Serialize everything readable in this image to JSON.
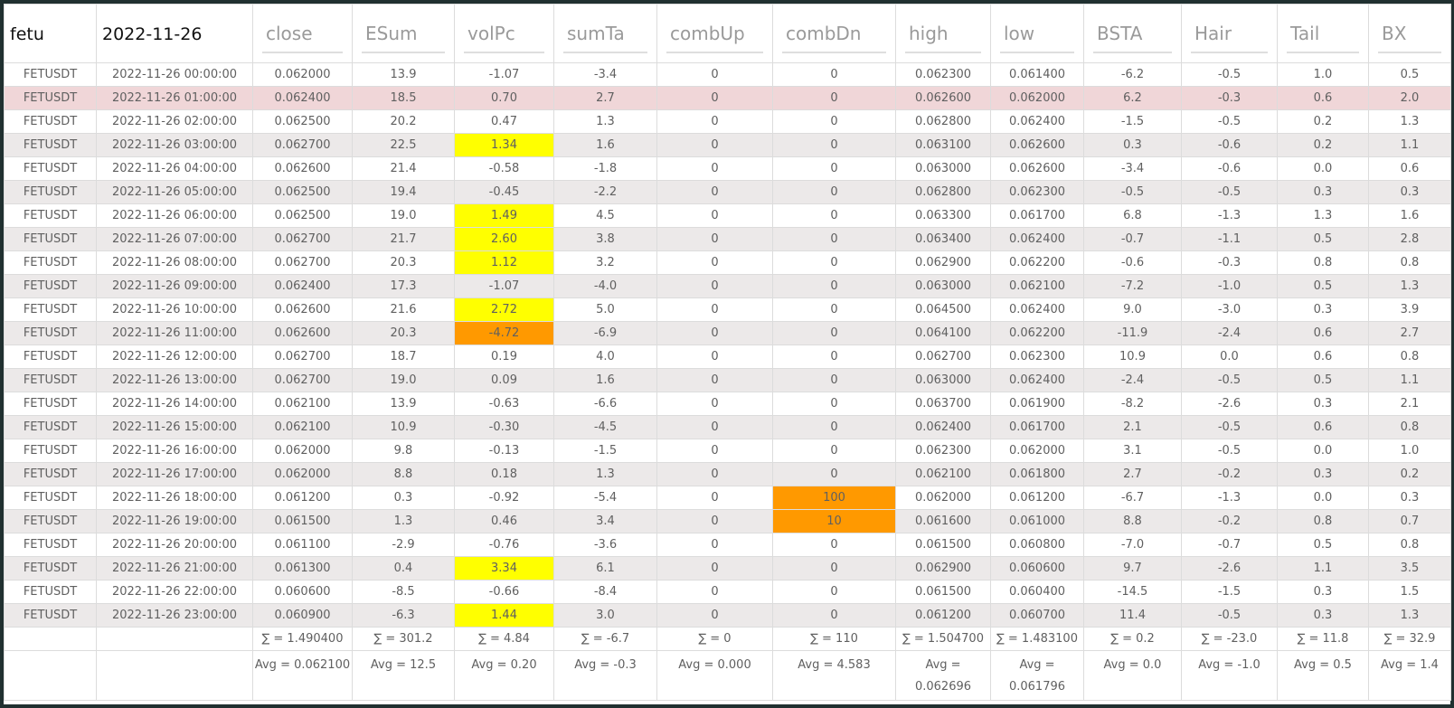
{
  "table": {
    "header": [
      "fetu",
      "2022-11-26",
      "close",
      "ESum",
      "volPc",
      "sumTa",
      "combUp",
      "combDn",
      "high",
      "low",
      "BSTA",
      "Hair",
      "Tail",
      "BX"
    ],
    "rows": [
      [
        "FETUSDT",
        "2022-11-26 00:00:00",
        "0.062000",
        "13.9",
        "-1.07",
        "-3.4",
        "0",
        "0",
        "0.062300",
        "0.061400",
        "-6.2",
        "-0.5",
        "1.0",
        "0.5"
      ],
      [
        "FETUSDT",
        "2022-11-26 01:00:00",
        "0.062400",
        "18.5",
        "0.70",
        "2.7",
        "0",
        "0",
        "0.062600",
        "0.062000",
        "6.2",
        "-0.3",
        "0.6",
        "2.0"
      ],
      [
        "FETUSDT",
        "2022-11-26 02:00:00",
        "0.062500",
        "20.2",
        "0.47",
        "1.3",
        "0",
        "0",
        "0.062800",
        "0.062400",
        "-1.5",
        "-0.5",
        "0.2",
        "1.3"
      ],
      [
        "FETUSDT",
        "2022-11-26 03:00:00",
        "0.062700",
        "22.5",
        "1.34",
        "1.6",
        "0",
        "0",
        "0.063100",
        "0.062600",
        "0.3",
        "-0.6",
        "0.2",
        "1.1"
      ],
      [
        "FETUSDT",
        "2022-11-26 04:00:00",
        "0.062600",
        "21.4",
        "-0.58",
        "-1.8",
        "0",
        "0",
        "0.063000",
        "0.062600",
        "-3.4",
        "-0.6",
        "0.0",
        "0.6"
      ],
      [
        "FETUSDT",
        "2022-11-26 05:00:00",
        "0.062500",
        "19.4",
        "-0.45",
        "-2.2",
        "0",
        "0",
        "0.062800",
        "0.062300",
        "-0.5",
        "-0.5",
        "0.3",
        "0.3"
      ],
      [
        "FETUSDT",
        "2022-11-26 06:00:00",
        "0.062500",
        "19.0",
        "1.49",
        "4.5",
        "0",
        "0",
        "0.063300",
        "0.061700",
        "6.8",
        "-1.3",
        "1.3",
        "1.6"
      ],
      [
        "FETUSDT",
        "2022-11-26 07:00:00",
        "0.062700",
        "21.7",
        "2.60",
        "3.8",
        "0",
        "0",
        "0.063400",
        "0.062400",
        "-0.7",
        "-1.1",
        "0.5",
        "2.8"
      ],
      [
        "FETUSDT",
        "2022-11-26 08:00:00",
        "0.062700",
        "20.3",
        "1.12",
        "3.2",
        "0",
        "0",
        "0.062900",
        "0.062200",
        "-0.6",
        "-0.3",
        "0.8",
        "0.8"
      ],
      [
        "FETUSDT",
        "2022-11-26 09:00:00",
        "0.062400",
        "17.3",
        "-1.07",
        "-4.0",
        "0",
        "0",
        "0.063000",
        "0.062100",
        "-7.2",
        "-1.0",
        "0.5",
        "1.3"
      ],
      [
        "FETUSDT",
        "2022-11-26 10:00:00",
        "0.062600",
        "21.6",
        "2.72",
        "5.0",
        "0",
        "0",
        "0.064500",
        "0.062400",
        "9.0",
        "-3.0",
        "0.3",
        "3.9"
      ],
      [
        "FETUSDT",
        "2022-11-26 11:00:00",
        "0.062600",
        "20.3",
        "-4.72",
        "-6.9",
        "0",
        "0",
        "0.064100",
        "0.062200",
        "-11.9",
        "-2.4",
        "0.6",
        "2.7"
      ],
      [
        "FETUSDT",
        "2022-11-26 12:00:00",
        "0.062700",
        "18.7",
        "0.19",
        "4.0",
        "0",
        "0",
        "0.062700",
        "0.062300",
        "10.9",
        "0.0",
        "0.6",
        "0.8"
      ],
      [
        "FETUSDT",
        "2022-11-26 13:00:00",
        "0.062700",
        "19.0",
        "0.09",
        "1.6",
        "0",
        "0",
        "0.063000",
        "0.062400",
        "-2.4",
        "-0.5",
        "0.5",
        "1.1"
      ],
      [
        "FETUSDT",
        "2022-11-26 14:00:00",
        "0.062100",
        "13.9",
        "-0.63",
        "-6.6",
        "0",
        "0",
        "0.063700",
        "0.061900",
        "-8.2",
        "-2.6",
        "0.3",
        "2.1"
      ],
      [
        "FETUSDT",
        "2022-11-26 15:00:00",
        "0.062100",
        "10.9",
        "-0.30",
        "-4.5",
        "0",
        "0",
        "0.062400",
        "0.061700",
        "2.1",
        "-0.5",
        "0.6",
        "0.8"
      ],
      [
        "FETUSDT",
        "2022-11-26 16:00:00",
        "0.062000",
        "9.8",
        "-0.13",
        "-1.5",
        "0",
        "0",
        "0.062300",
        "0.062000",
        "3.1",
        "-0.5",
        "0.0",
        "1.0"
      ],
      [
        "FETUSDT",
        "2022-11-26 17:00:00",
        "0.062000",
        "8.8",
        "0.18",
        "1.3",
        "0",
        "0",
        "0.062100",
        "0.061800",
        "2.7",
        "-0.2",
        "0.3",
        "0.2"
      ],
      [
        "FETUSDT",
        "2022-11-26 18:00:00",
        "0.061200",
        "0.3",
        "-0.92",
        "-5.4",
        "0",
        "100",
        "0.062000",
        "0.061200",
        "-6.7",
        "-1.3",
        "0.0",
        "0.3"
      ],
      [
        "FETUSDT",
        "2022-11-26 19:00:00",
        "0.061500",
        "1.3",
        "0.46",
        "3.4",
        "0",
        "10",
        "0.061600",
        "0.061000",
        "8.8",
        "-0.2",
        "0.8",
        "0.7"
      ],
      [
        "FETUSDT",
        "2022-11-26 20:00:00",
        "0.061100",
        "-2.9",
        "-0.76",
        "-3.6",
        "0",
        "0",
        "0.061500",
        "0.060800",
        "-7.0",
        "-0.7",
        "0.5",
        "0.8"
      ],
      [
        "FETUSDT",
        "2022-11-26 21:00:00",
        "0.061300",
        "0.4",
        "3.34",
        "6.1",
        "0",
        "0",
        "0.062900",
        "0.060600",
        "9.7",
        "-2.6",
        "1.1",
        "3.5"
      ],
      [
        "FETUSDT",
        "2022-11-26 22:00:00",
        "0.060600",
        "-8.5",
        "-0.66",
        "-8.4",
        "0",
        "0",
        "0.061500",
        "0.060400",
        "-14.5",
        "-1.5",
        "0.3",
        "1.5"
      ],
      [
        "FETUSDT",
        "2022-11-26 23:00:00",
        "0.060900",
        "-6.3",
        "1.44",
        "3.0",
        "0",
        "0",
        "0.061200",
        "0.060700",
        "11.4",
        "-0.5",
        "0.3",
        "1.3"
      ]
    ],
    "sums": [
      "∑ = 1.490400",
      "∑ = 301.2",
      "∑ = 4.84",
      "∑ = -6.7",
      "∑ = 0",
      "∑ = 110",
      "∑ = 1.504700",
      "∑ = 1.483100",
      "∑ = 0.2",
      "∑ = -23.0",
      "∑ = 11.8",
      "∑ = 32.9"
    ],
    "averages": [
      "Avg = 0.062100",
      "Avg = 12.5",
      "Avg = 0.20",
      "Avg = -0.3",
      "Avg = 0.000",
      "Avg = 4.583",
      "Avg = 0.062696",
      "Avg = 0.061796",
      "Avg = 0.0",
      "Avg = -1.0",
      "Avg = 0.5",
      "Avg = 1.4"
    ],
    "row_highlight": {
      "row": 1,
      "color": "#f0d6d8"
    },
    "cell_highlights": [
      {
        "row": 3,
        "col": 4,
        "color": "#ffff00"
      },
      {
        "row": 6,
        "col": 4,
        "color": "#ffff00"
      },
      {
        "row": 7,
        "col": 4,
        "color": "#ffff00"
      },
      {
        "row": 8,
        "col": 4,
        "color": "#ffff00"
      },
      {
        "row": 10,
        "col": 4,
        "color": "#ffff00"
      },
      {
        "row": 11,
        "col": 4,
        "color": "#ff9900"
      },
      {
        "row": 21,
        "col": 4,
        "color": "#ffff00"
      },
      {
        "row": 23,
        "col": 4,
        "color": "#ffff00"
      },
      {
        "row": 18,
        "col": 7,
        "color": "#ff9900"
      },
      {
        "row": 19,
        "col": 7,
        "color": "#ff9900"
      }
    ]
  }
}
